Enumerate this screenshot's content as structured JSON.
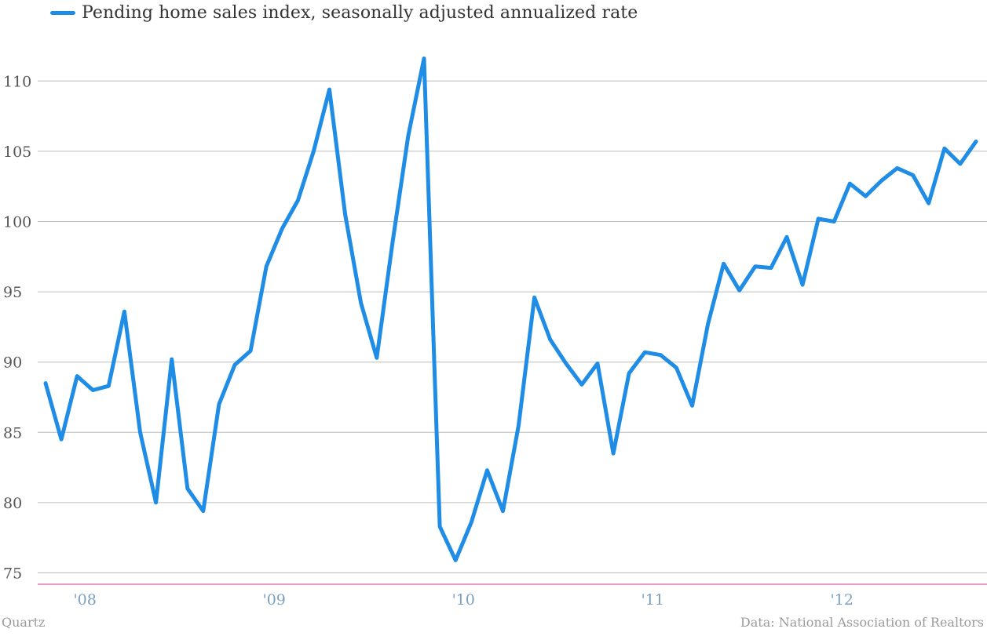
{
  "legend": {
    "label": "Pending home sales index, seasonally adjusted annualized rate",
    "color": "#1f8ce6"
  },
  "footer": {
    "source_left": "Quartz",
    "source_right": "Data: National Association of Realtors"
  },
  "colors": {
    "line": "#1f8ce6",
    "grid": "#bdbdbd",
    "baseline": "#e07ab8",
    "xtick": "#7aa0c0"
  },
  "chart_data": {
    "type": "line",
    "title": "",
    "xlabel": "",
    "ylabel": "",
    "ylim": [
      74,
      112
    ],
    "yticks": [
      75,
      80,
      85,
      90,
      95,
      100,
      105,
      110
    ],
    "x_ticks": [
      {
        "label": "'08",
        "index": 2
      },
      {
        "label": "'09",
        "index": 14
      },
      {
        "label": "'10",
        "index": 26
      },
      {
        "label": "'11",
        "index": 38
      },
      {
        "label": "'12",
        "index": 50
      }
    ],
    "grid": true,
    "legend_position": "top-left",
    "series": [
      {
        "name": "Pending home sales index, seasonally adjusted annualized rate",
        "values": [
          88.5,
          84.5,
          89.0,
          88.0,
          88.3,
          93.6,
          85.0,
          80.0,
          90.2,
          81.0,
          79.4,
          87.0,
          89.8,
          90.8,
          96.8,
          99.5,
          101.5,
          105.0,
          109.4,
          100.5,
          94.2,
          90.3,
          98.5,
          106.1,
          111.6,
          78.3,
          75.9,
          78.6,
          82.3,
          79.4,
          85.5,
          94.6,
          91.6,
          89.9,
          88.4,
          89.9,
          83.5,
          89.2,
          90.7,
          90.5,
          89.6,
          86.9,
          92.7,
          97.0,
          95.1,
          96.8,
          96.7,
          98.9,
          95.5,
          100.2,
          100.0,
          102.7,
          101.8,
          102.9,
          103.8,
          103.3,
          101.3,
          105.2,
          104.1,
          105.7
        ]
      }
    ]
  }
}
